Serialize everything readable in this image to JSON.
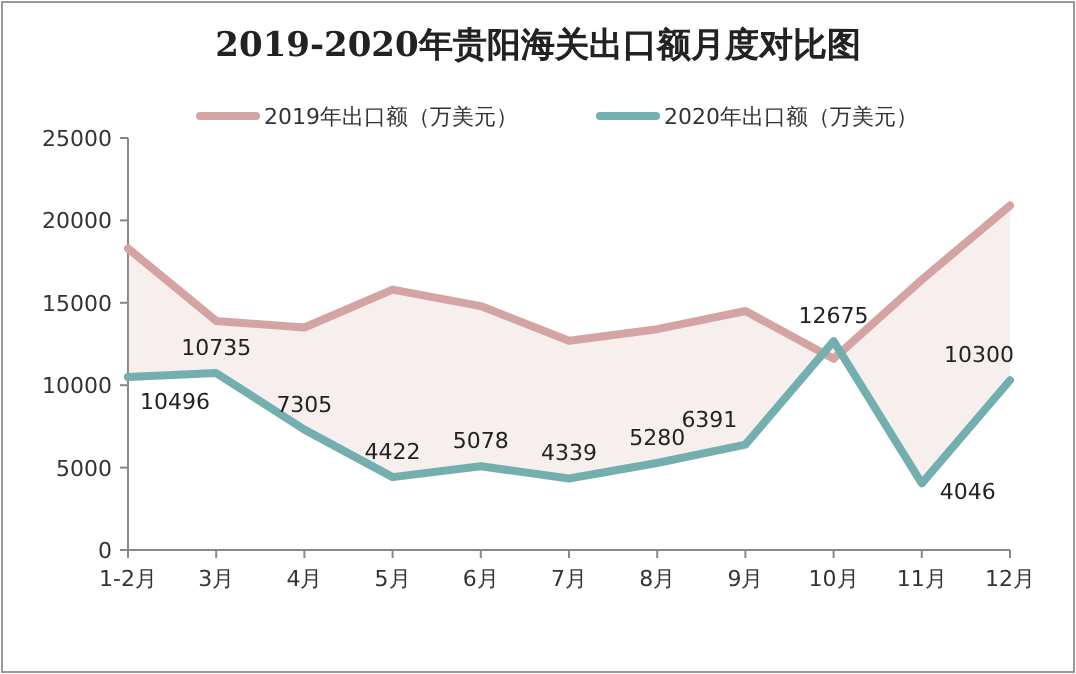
{
  "chart_data": {
    "type": "line",
    "title": "2019-2020年贵阳海关出口额月度对比图",
    "categories": [
      "1-2月",
      "3月",
      "4月",
      "5月",
      "6月",
      "7月",
      "8月",
      "9月",
      "10月",
      "11月",
      "12月"
    ],
    "series": [
      {
        "name": "2019年出口额（万美元）",
        "color": "#d4a3a3",
        "values": [
          18300,
          13900,
          13500,
          15800,
          14800,
          12700,
          13400,
          14500,
          11600,
          16400,
          20900
        ],
        "upper": [
          18300,
          13900,
          13500,
          15800,
          14800,
          12700,
          13400,
          14500,
          11600,
          16400,
          20900
        ],
        "lower": [
          10496,
          10735,
          7305,
          4422,
          5078,
          4339,
          5280,
          6391,
          12675,
          4046,
          10300
        ]
      },
      {
        "name": "2020年出口额（万美元）",
        "color": "#74afaf",
        "values": [
          10496,
          10735,
          7305,
          4422,
          5078,
          4339,
          5280,
          6391,
          12675,
          4046,
          10300
        ],
        "value_labels": [
          "10496",
          "10735",
          "7305",
          "4422",
          "5078",
          "4339",
          "5280",
          "6391",
          "12675",
          "4046",
          "10300"
        ]
      }
    ],
    "ylim": [
      0,
      25000
    ],
    "yticks": [
      0,
      5000,
      10000,
      15000,
      20000,
      25000
    ],
    "grid": false,
    "legend": "top",
    "marker": "none",
    "line_style": "solid"
  }
}
